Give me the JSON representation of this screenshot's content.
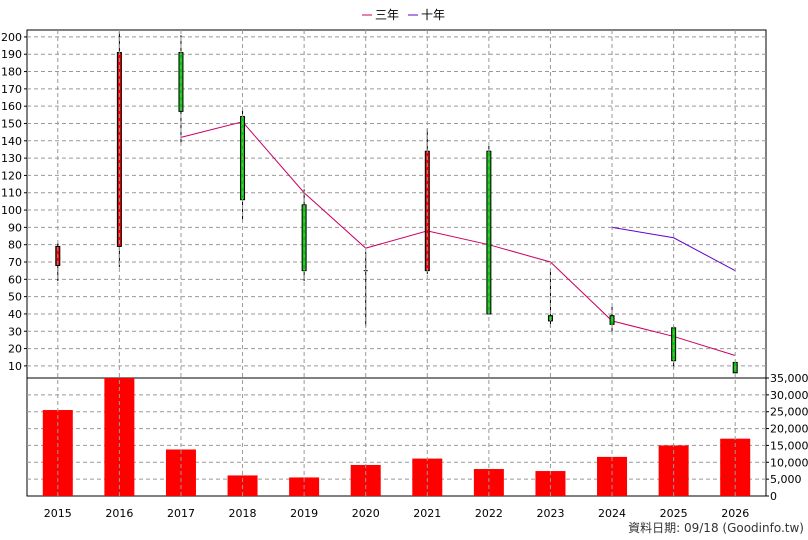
{
  "legend": [
    {
      "label": "三年",
      "color": "#cc0066"
    },
    {
      "label": "十年",
      "color": "#6600cc"
    }
  ],
  "footer": "資料日期: 09/18  (Goodinfo.tw)",
  "colors": {
    "up": "#ee0000",
    "down": "#00cc00",
    "volume": "#ff0000",
    "grid": "#999999"
  },
  "chart_data": {
    "type": "candlestick+line+bar",
    "categories": [
      "2015",
      "2016",
      "2017",
      "2018",
      "2019",
      "2020",
      "2021",
      "2022",
      "2023",
      "2024",
      "2025",
      "2026"
    ],
    "price_axis": {
      "ticks": [
        10,
        20,
        30,
        40,
        50,
        60,
        70,
        80,
        90,
        100,
        110,
        120,
        130,
        140,
        150,
        160,
        170,
        180,
        190,
        200
      ],
      "ylim": [
        3,
        204
      ]
    },
    "volume_axis": {
      "ticks": [
        "0",
        "5,000",
        "10,000",
        "15,000",
        "20,000",
        "25,000",
        "30,000",
        "35,000"
      ],
      "ylim": [
        0,
        35000
      ]
    },
    "candles": [
      {
        "year": "2015",
        "open": 68,
        "close": 79,
        "high": 81,
        "low": 59
      },
      {
        "year": "2016",
        "open": 79,
        "close": 191,
        "high": 203,
        "low": 67
      },
      {
        "year": "2017",
        "open": 191,
        "close": 157,
        "high": 201,
        "low": 139
      },
      {
        "year": "2018",
        "open": 154,
        "close": 106,
        "high": 158,
        "low": 94
      },
      {
        "year": "2019",
        "open": 103,
        "close": 65,
        "high": 112,
        "low": 59
      },
      {
        "year": "2020",
        "open": 65,
        "close": 65,
        "high": 76,
        "low": 33
      },
      {
        "year": "2021",
        "open": 65,
        "close": 134,
        "high": 147,
        "low": 63
      },
      {
        "year": "2022",
        "open": 134,
        "close": 40,
        "high": 137,
        "low": 40
      },
      {
        "year": "2023",
        "open": 39,
        "close": 36,
        "high": 66,
        "low": 32
      },
      {
        "year": "2024",
        "open": 39,
        "close": 34,
        "high": 44,
        "low": 29
      },
      {
        "year": "2025",
        "open": 32,
        "close": 13,
        "high": 33,
        "low": 9
      },
      {
        "year": "2026",
        "open": 12,
        "close": 6,
        "high": 12,
        "low": 6
      }
    ],
    "series": [
      {
        "name": "三年",
        "x": [
          "2017",
          "2018",
          "2019",
          "2020",
          "2021",
          "2022",
          "2023",
          "2024",
          "2025",
          "2026"
        ],
        "values": [
          142,
          151,
          110,
          78,
          88,
          80,
          70,
          36,
          27,
          16
        ]
      },
      {
        "name": "十年",
        "x": [
          "2024",
          "2025",
          "2026"
        ],
        "values": [
          90,
          84,
          65
        ]
      }
    ],
    "volume": [
      25500,
      35000,
      13800,
      6100,
      5500,
      9200,
      11100,
      8000,
      7400,
      11600,
      15000,
      17000
    ],
    "grid": true,
    "legend_position": "top-center"
  }
}
